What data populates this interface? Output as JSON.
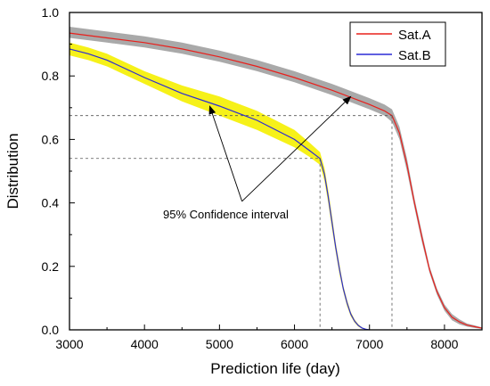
{
  "chart_data": {
    "type": "line",
    "title": "",
    "xlabel": "Prediction life (day)",
    "ylabel": "Distribution",
    "xlim": [
      3000,
      8500
    ],
    "ylim": [
      0.0,
      1.0
    ],
    "xticks": [
      3000,
      4000,
      5000,
      6000,
      7000,
      8000
    ],
    "yticks": [
      0.0,
      0.2,
      0.4,
      0.6,
      0.8,
      1.0
    ],
    "xtick_labels": [
      "3000",
      "4000",
      "5000",
      "6000",
      "7000",
      "8000"
    ],
    "ytick_labels": [
      "0.0",
      "0.2",
      "0.4",
      "0.6",
      "0.8",
      "1.0"
    ],
    "grid": false,
    "legend_position": "top-right",
    "series": [
      {
        "name": "Sat.A",
        "color": "#e8201c",
        "band_color": "#a0a0a0",
        "x": [
          3000,
          3500,
          4000,
          4500,
          5000,
          5500,
          6000,
          6500,
          7000,
          7200,
          7300,
          7400,
          7500,
          7600,
          7700,
          7800,
          7900,
          8000,
          8100,
          8200,
          8300,
          8400,
          8500
        ],
        "y": [
          0.935,
          0.92,
          0.905,
          0.885,
          0.86,
          0.83,
          0.795,
          0.755,
          0.71,
          0.69,
          0.675,
          0.62,
          0.52,
          0.4,
          0.29,
          0.19,
          0.12,
          0.07,
          0.04,
          0.025,
          0.015,
          0.01,
          0.005
        ],
        "ci_lower": [
          0.92,
          0.905,
          0.89,
          0.87,
          0.845,
          0.815,
          0.78,
          0.74,
          0.695,
          0.675,
          0.655,
          0.6,
          0.5,
          0.385,
          0.275,
          0.18,
          0.11,
          0.06,
          0.03,
          0.017,
          0.01,
          0.006,
          0.003
        ],
        "ci_upper": [
          0.955,
          0.94,
          0.925,
          0.905,
          0.88,
          0.85,
          0.815,
          0.775,
          0.73,
          0.71,
          0.695,
          0.64,
          0.54,
          0.415,
          0.305,
          0.2,
          0.13,
          0.08,
          0.05,
          0.033,
          0.02,
          0.014,
          0.008
        ]
      },
      {
        "name": "Sat.B",
        "color": "#2b2bd6",
        "band_color": "#f5f000",
        "x": [
          3000,
          3250,
          3500,
          4000,
          4500,
          5000,
          5500,
          6000,
          6200,
          6340,
          6400,
          6450,
          6500,
          6550,
          6600,
          6650,
          6700,
          6750,
          6800,
          6850,
          6900,
          6950,
          7000
        ],
        "y": [
          0.885,
          0.87,
          0.85,
          0.795,
          0.745,
          0.705,
          0.66,
          0.6,
          0.565,
          0.54,
          0.49,
          0.42,
          0.34,
          0.26,
          0.19,
          0.13,
          0.085,
          0.05,
          0.028,
          0.014,
          0.006,
          0.002,
          0.0
        ],
        "ci_lower": [
          0.865,
          0.85,
          0.83,
          0.775,
          0.72,
          0.675,
          0.63,
          0.575,
          0.545,
          0.52,
          0.47,
          0.4,
          0.32,
          0.245,
          0.175,
          0.12,
          0.075,
          0.043,
          0.023,
          0.01,
          0.004,
          0.001,
          0.0
        ],
        "ci_upper": [
          0.905,
          0.89,
          0.87,
          0.815,
          0.77,
          0.735,
          0.69,
          0.63,
          0.59,
          0.56,
          0.51,
          0.44,
          0.36,
          0.275,
          0.205,
          0.14,
          0.095,
          0.057,
          0.033,
          0.018,
          0.008,
          0.003,
          0.0
        ]
      }
    ],
    "reference_lines": [
      {
        "from_x": 3000,
        "to_x": 7300,
        "y": 0.675,
        "drop_to_axis": true
      },
      {
        "from_x": 3000,
        "to_x": 6340,
        "y": 0.54,
        "drop_to_axis": true
      }
    ],
    "annotation": {
      "text": "95% Confidence interval",
      "anchor_x": 5300,
      "anchor_y": 0.405,
      "arrow_targets": [
        {
          "x": 4870,
          "y": 0.705
        },
        {
          "x": 6750,
          "y": 0.735
        }
      ]
    }
  }
}
